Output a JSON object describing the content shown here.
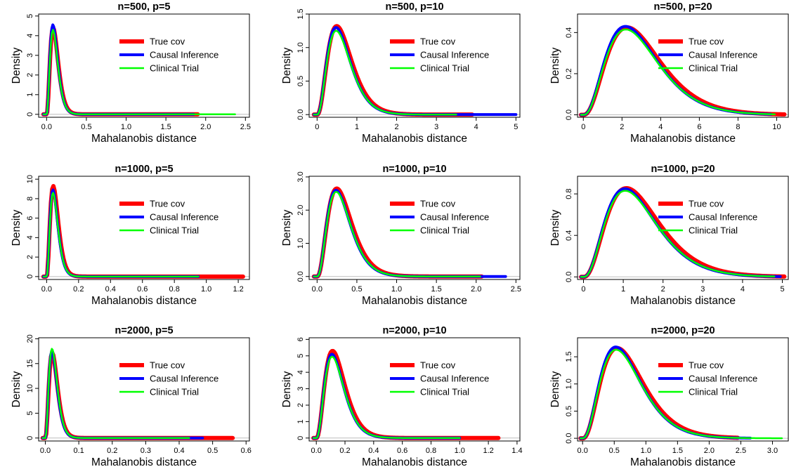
{
  "chart_data": [
    {
      "type": "line",
      "title": "n=500, p=5",
      "xlabel": "Mahalanobis distance",
      "ylabel": "Density",
      "xlim": [
        -0.1,
        2.55
      ],
      "ylim": [
        -0.15,
        5.1
      ],
      "xticks": [
        "0.0",
        "0.5",
        "1.0",
        "1.5",
        "2.0",
        "2.5"
      ],
      "yticks": [
        "0",
        "1",
        "2",
        "3",
        "4",
        "5"
      ],
      "mode": 0.08,
      "xmax": {
        "true": 1.9,
        "causal": 1.85,
        "clinical": 2.37
      },
      "series": [
        {
          "name": "True cov",
          "color": "#ff0000",
          "peak": 4.4
        },
        {
          "name": "Causal Inference",
          "color": "#0000ff",
          "peak": 4.55
        },
        {
          "name": "Clinical Trial",
          "color": "#00ff00",
          "peak": 4.3
        }
      ]
    },
    {
      "type": "line",
      "title": "n=500, p=10",
      "xlabel": "Mahalanobis distance",
      "ylabel": "Density",
      "xlim": [
        -0.2,
        5.1
      ],
      "ylim": [
        -0.04,
        1.5
      ],
      "xticks": [
        "0",
        "1",
        "2",
        "3",
        "4",
        "5"
      ],
      "yticks": [
        "0.0",
        "0.5",
        "1.0",
        "1.5"
      ],
      "mode": 0.48,
      "xmax": {
        "true": 3.9,
        "causal": 5.0,
        "clinical": 3.5
      },
      "series": [
        {
          "name": "True cov",
          "color": "#ff0000",
          "peak": 1.32
        },
        {
          "name": "Causal Inference",
          "color": "#0000ff",
          "peak": 1.3
        },
        {
          "name": "Clinical Trial",
          "color": "#00ff00",
          "peak": 1.25
        }
      ]
    },
    {
      "type": "line",
      "title": "n=500, p=20",
      "xlabel": "Mahalanobis distance",
      "ylabel": "Density",
      "xlim": [
        -0.3,
        10.6
      ],
      "ylim": [
        -0.012,
        0.49
      ],
      "xticks": [
        "0",
        "2",
        "4",
        "6",
        "8",
        "10"
      ],
      "yticks": [
        "0.0",
        "0.2",
        "0.4"
      ],
      "mode": 2.2,
      "xmax": {
        "true": 10.4,
        "causal": 9.7,
        "clinical": 9.9
      },
      "series": [
        {
          "name": "True cov",
          "color": "#ff0000",
          "peak": 0.425
        },
        {
          "name": "Causal Inference",
          "color": "#0000ff",
          "peak": 0.43
        },
        {
          "name": "Clinical Trial",
          "color": "#00ff00",
          "peak": 0.415
        }
      ]
    },
    {
      "type": "line",
      "title": "n=1000, p=5",
      "xlabel": "Mahalanobis distance",
      "ylabel": "Density",
      "xlim": [
        -0.05,
        1.27
      ],
      "ylim": [
        -0.3,
        10.3
      ],
      "xticks": [
        "0.0",
        "0.2",
        "0.4",
        "0.6",
        "0.8",
        "1.0",
        "1.2"
      ],
      "yticks": [
        "0",
        "2",
        "4",
        "6",
        "8",
        "10"
      ],
      "mode": 0.04,
      "xmax": {
        "true": 1.23,
        "causal": 0.95,
        "clinical": 0.95
      },
      "series": [
        {
          "name": "True cov",
          "color": "#ff0000",
          "peak": 9.3
        },
        {
          "name": "Causal Inference",
          "color": "#0000ff",
          "peak": 8.9
        },
        {
          "name": "Clinical Trial",
          "color": "#00ff00",
          "peak": 8.6
        }
      ]
    },
    {
      "type": "line",
      "title": "n=1000, p=10",
      "xlabel": "Mahalanobis distance",
      "ylabel": "Density",
      "xlim": [
        -0.1,
        2.55
      ],
      "ylim": [
        -0.09,
        3.02
      ],
      "xticks": [
        "0.0",
        "0.5",
        "1.0",
        "1.5",
        "2.0",
        "2.5"
      ],
      "yticks": [
        "0.0",
        "1.0",
        "2.0",
        "3.0"
      ],
      "mode": 0.24,
      "xmax": {
        "true": 2.07,
        "causal": 2.37,
        "clinical": 2.05
      },
      "series": [
        {
          "name": "True cov",
          "color": "#ff0000",
          "peak": 2.65
        },
        {
          "name": "Causal Inference",
          "color": "#0000ff",
          "peak": 2.6
        },
        {
          "name": "Clinical Trial",
          "color": "#00ff00",
          "peak": 2.55
        }
      ]
    },
    {
      "type": "line",
      "title": "n=1000, p=20",
      "xlabel": "Mahalanobis distance",
      "ylabel": "Density",
      "xlim": [
        -0.15,
        5.15
      ],
      "ylim": [
        -0.025,
        0.97
      ],
      "xticks": [
        "0",
        "1",
        "2",
        "3",
        "4",
        "5"
      ],
      "yticks": [
        "0.0",
        "0.4",
        "0.8"
      ],
      "mode": 1.05,
      "xmax": {
        "true": 5.05,
        "causal": 4.95,
        "clinical": 4.8
      },
      "series": [
        {
          "name": "True cov",
          "color": "#ff0000",
          "peak": 0.855
        },
        {
          "name": "Causal Inference",
          "color": "#0000ff",
          "peak": 0.85
        },
        {
          "name": "Clinical Trial",
          "color": "#00ff00",
          "peak": 0.83
        }
      ]
    },
    {
      "type": "line",
      "title": "n=2000, p=5",
      "xlabel": "Mahalanobis distance",
      "ylabel": "Density",
      "xlim": [
        -0.02,
        0.61
      ],
      "ylim": [
        -0.6,
        20.2
      ],
      "xticks": [
        "0.0",
        "0.1",
        "0.2",
        "0.3",
        "0.4",
        "0.5",
        "0.6"
      ],
      "yticks": [
        "0",
        "5",
        "10",
        "15",
        "20"
      ],
      "mode": 0.02,
      "xmax": {
        "true": 0.56,
        "causal": 0.47,
        "clinical": 0.43
      },
      "series": [
        {
          "name": "True cov",
          "color": "#ff0000",
          "peak": 17.2
        },
        {
          "name": "Causal Inference",
          "color": "#0000ff",
          "peak": 17.6
        },
        {
          "name": "Clinical Trial",
          "color": "#00ff00",
          "peak": 18.0
        }
      ]
    },
    {
      "type": "line",
      "title": "n=2000, p=10",
      "xlabel": "Mahalanobis distance",
      "ylabel": "Density",
      "xlim": [
        -0.05,
        1.42
      ],
      "ylim": [
        -0.18,
        6.1
      ],
      "xticks": [
        "0.0",
        "0.2",
        "0.4",
        "0.6",
        "0.8",
        "1.0",
        "1.2",
        "1.4"
      ],
      "yticks": [
        "0",
        "1",
        "2",
        "3",
        "4",
        "5",
        "6"
      ],
      "mode": 0.11,
      "xmax": {
        "true": 1.27,
        "causal": 1.0,
        "clinical": 1.0
      },
      "series": [
        {
          "name": "True cov",
          "color": "#ff0000",
          "peak": 5.3
        },
        {
          "name": "Causal Inference",
          "color": "#0000ff",
          "peak": 5.1
        },
        {
          "name": "Clinical Trial",
          "color": "#00ff00",
          "peak": 4.95
        }
      ]
    },
    {
      "type": "line",
      "title": "n=2000, p=20",
      "xlabel": "Mahalanobis distance",
      "ylabel": "Density",
      "xlim": [
        -0.08,
        3.25
      ],
      "ylim": [
        -0.05,
        1.85
      ],
      "xticks": [
        "0.0",
        "0.5",
        "1.0",
        "1.5",
        "2.0",
        "2.5",
        "3.0"
      ],
      "yticks": [
        "0.0",
        "0.5",
        "1.0",
        "1.5"
      ],
      "mode": 0.53,
      "xmax": {
        "true": 2.45,
        "causal": 2.65,
        "clinical": 3.15
      },
      "series": [
        {
          "name": "True cov",
          "color": "#ff0000",
          "peak": 1.66
        },
        {
          "name": "Causal Inference",
          "color": "#0000ff",
          "peak": 1.68
        },
        {
          "name": "Clinical Trial",
          "color": "#00ff00",
          "peak": 1.63
        }
      ]
    }
  ]
}
